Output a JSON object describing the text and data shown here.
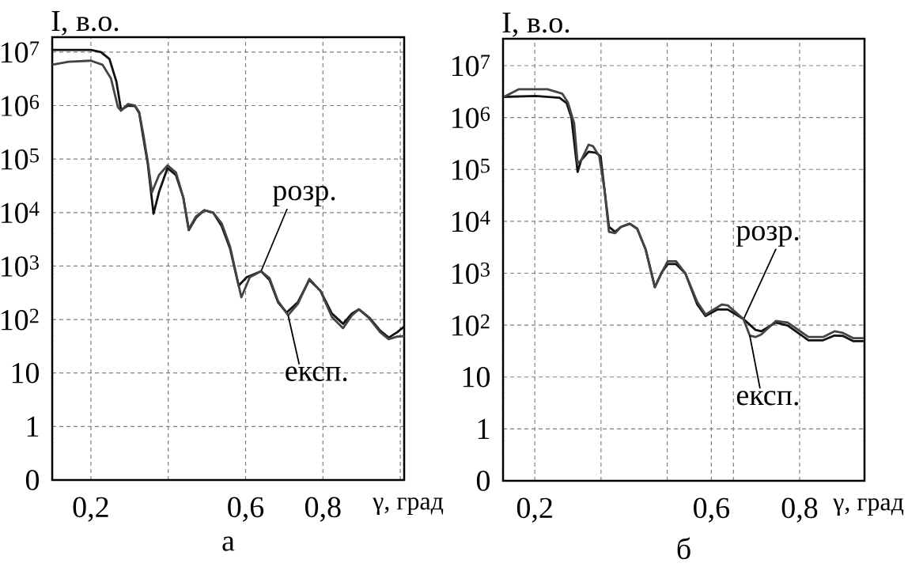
{
  "chart_data": [
    {
      "type": "line",
      "title": "а",
      "xlabel": "γ, град",
      "ylabel": "I, в.о.",
      "log": "y",
      "grid": true,
      "xlim": [
        0.1,
        1.01
      ],
      "ylim": [
        0.1,
        19000000
      ],
      "xticks": [
        {
          "value": 0.2,
          "label": "0,2"
        },
        {
          "value": 0.4,
          "label": null
        },
        {
          "value": 0.6,
          "label": "0,6"
        },
        {
          "value": 0.8,
          "label": "0,8"
        },
        {
          "value": 1.0,
          "label": null
        }
      ],
      "yticks": [
        {
          "value": 0.1,
          "label": "0"
        },
        1,
        10,
        {
          "value": 100,
          "label": "10$^{2}$"
        },
        {
          "value": 1000,
          "label": "10$^{3}$"
        },
        {
          "value": 10000,
          "label": "10$^{4}$"
        },
        {
          "value": 100000,
          "label": "10$^{5}$"
        },
        {
          "value": 1000000,
          "label": "10$^{6}$"
        },
        {
          "value": 10000000,
          "label": "10$^{7}$"
        }
      ],
      "series": [
        {
          "name": "розр.",
          "color": "#111111",
          "x": [
            0.1,
            0.2,
            0.226,
            0.248,
            0.266,
            0.278,
            0.296,
            0.314,
            0.325,
            0.336,
            0.347,
            0.362,
            0.376,
            0.398,
            0.42,
            0.439,
            0.453,
            0.472,
            0.493,
            0.516,
            0.538,
            0.56,
            0.582,
            0.603,
            0.64,
            0.662,
            0.684,
            0.706,
            0.735,
            0.765,
            0.794,
            0.823,
            0.852,
            0.875,
            0.893,
            0.919,
            0.948,
            0.97,
            0.992,
            1.01
          ],
          "values": [
            11000000,
            11000000,
            10000000,
            7400000,
            2800000,
            830000,
            1000000,
            980000,
            720000,
            240000,
            82000,
            9500,
            24000,
            68000,
            50000,
            19000,
            4700,
            8000,
            11000,
            10000,
            5600,
            2100,
            430,
            620,
            800,
            550,
            210,
            135,
            210,
            550,
            340,
            130,
            83,
            130,
            155,
            110,
            62,
            46,
            58,
            74
          ]
        },
        {
          "name": "експ.",
          "color": "#444444",
          "x": [
            0.1,
            0.142,
            0.2,
            0.23,
            0.252,
            0.27,
            0.278,
            0.296,
            0.314,
            0.325,
            0.336,
            0.347,
            0.358,
            0.376,
            0.398,
            0.42,
            0.439,
            0.453,
            0.472,
            0.493,
            0.516,
            0.538,
            0.56,
            0.589,
            0.611,
            0.64,
            0.662,
            0.684,
            0.71,
            0.735,
            0.765,
            0.794,
            0.823,
            0.852,
            0.875,
            0.893,
            0.919,
            0.948,
            0.97,
            0.992,
            1.01
          ],
          "values": [
            5800000,
            6600000,
            6900000,
            5800000,
            3200000,
            930000,
            800000,
            1070000,
            1000000,
            750000,
            280000,
            91000,
            24000,
            50000,
            76000,
            56000,
            19000,
            4900,
            8500,
            11000,
            10000,
            6300,
            2300,
            260,
            620,
            800,
            590,
            220,
            120,
            195,
            575,
            340,
            112,
            69,
            120,
            155,
            107,
            58,
            43,
            48,
            49
          ]
        }
      ]
    },
    {
      "type": "line",
      "title": "б",
      "xlabel": "γ, град",
      "ylabel": "I, в.о.",
      "log": "y",
      "grid": true,
      "xlim": [
        0.128,
        0.947
      ],
      "ylim": [
        0.1,
        33000000
      ],
      "xticks": [
        {
          "value": 0.2,
          "label": "0,2"
        },
        {
          "value": 0.35,
          "label": null
        },
        {
          "value": 0.5,
          "label": null
        },
        {
          "value": 0.6,
          "label": "0,6"
        },
        {
          "value": 0.65,
          "label": null
        },
        {
          "value": 0.8,
          "label": "0,8"
        }
      ],
      "yticks": [
        {
          "value": 0.1,
          "label": "0"
        },
        1,
        10,
        {
          "value": 100,
          "label": "10$^{2}$"
        },
        {
          "value": 1000,
          "label": "10$^{3}$"
        },
        {
          "value": 10000,
          "label": "10$^{4}$"
        },
        {
          "value": 100000,
          "label": "10$^{5}$"
        },
        {
          "value": 1000000,
          "label": "10$^{6}$"
        },
        {
          "value": 10000000,
          "label": "10$^{7}$"
        }
      ],
      "series": [
        {
          "name": "розр.",
          "color": "#111111",
          "x": [
            0.13,
            0.202,
            0.256,
            0.272,
            0.283,
            0.292,
            0.297,
            0.305,
            0.322,
            0.338,
            0.349,
            0.358,
            0.368,
            0.382,
            0.395,
            0.415,
            0.432,
            0.451,
            0.472,
            0.488,
            0.501,
            0.52,
            0.541,
            0.568,
            0.587,
            0.614,
            0.637,
            0.673,
            0.7,
            0.713,
            0.746,
            0.773,
            0.82,
            0.853,
            0.879,
            0.898,
            0.922,
            0.945
          ],
          "values": [
            2500000,
            2600000,
            2400000,
            1900000,
            1000000,
            210000,
            90000,
            150000,
            220000,
            210000,
            180000,
            40000,
            7800,
            6300,
            7800,
            9000,
            7200,
            2900,
            540,
            1050,
            1500,
            1500,
            1000,
            250,
            150,
            200,
            200,
            130,
            81,
            76,
            112,
            98,
            51,
            51,
            63,
            62,
            49,
            49
          ]
        },
        {
          "name": "експ.",
          "color": "#444444",
          "x": [
            0.13,
            0.163,
            0.229,
            0.262,
            0.275,
            0.289,
            0.297,
            0.305,
            0.322,
            0.332,
            0.346,
            0.358,
            0.368,
            0.382,
            0.395,
            0.415,
            0.432,
            0.451,
            0.472,
            0.488,
            0.501,
            0.52,
            0.541,
            0.568,
            0.587,
            0.624,
            0.637,
            0.673,
            0.687,
            0.7,
            0.713,
            0.746,
            0.773,
            0.82,
            0.853,
            0.879,
            0.898,
            0.922,
            0.945
          ],
          "values": [
            2500000,
            3500000,
            3500000,
            2900000,
            1950000,
            780000,
            130000,
            150000,
            300000,
            280000,
            180000,
            40000,
            6300,
            5900,
            7800,
            9000,
            7200,
            2900,
            540,
            1050,
            1700,
            1700,
            1000,
            280,
            160,
            250,
            240,
            130,
            63,
            59,
            66,
            120,
            112,
            59,
            59,
            76,
            71,
            56,
            56
          ]
        }
      ]
    }
  ]
}
